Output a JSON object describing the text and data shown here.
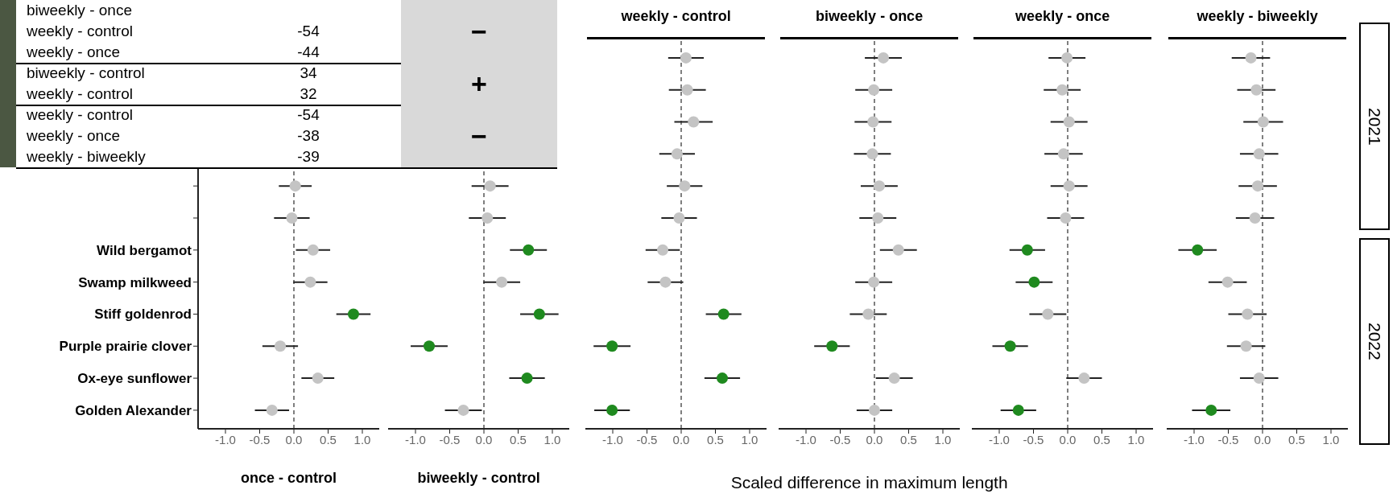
{
  "chart_data": [
    {
      "type": "other",
      "categories": [
        "biweekly - once",
        "weekly - control",
        "weekly - once",
        "biweekly - control",
        "weekly - control",
        "weekly - control",
        "weekly - once",
        "weekly - biweekly"
      ],
      "values": [
        null,
        -54,
        -44,
        34,
        32,
        -54,
        -38,
        -39
      ],
      "data_labels": true,
      "annotations": [
        "−",
        "+",
        "−"
      ]
    },
    {
      "type": "scatter",
      "orientation": "horizontal",
      "xlabel": "once - control",
      "marker": "circle",
      "categories": [
        null,
        null,
        null,
        null,
        null,
        null,
        "Wild bergamot",
        "Swamp milkweed",
        "Stiff goldenrod",
        "Purple prairie clover",
        "Ox-eye sunflower",
        "Golden Alexander"
      ],
      "values": [
        null,
        null,
        null,
        null,
        0.02,
        -0.03,
        0.28,
        0.24,
        0.87,
        -0.2,
        0.35,
        -0.32
      ],
      "errors": [
        null,
        null,
        null,
        null,
        0.24,
        0.26,
        0.25,
        0.25,
        0.25,
        0.26,
        0.24,
        0.25
      ],
      "colors": [
        null,
        null,
        null,
        null,
        "#c4c4c4",
        "#c4c4c4",
        "#c4c4c4",
        "#c4c4c4",
        "#1f8a1f",
        "#c4c4c4",
        "#c4c4c4",
        "#c4c4c4"
      ],
      "xlim": [
        -1.4,
        1.25
      ],
      "xticks": [
        {
          "value": -1,
          "label": "-1.0"
        },
        {
          "value": -0.5,
          "label": "-0.5"
        },
        {
          "value": 0,
          "label": "0.0"
        },
        {
          "value": 0.5,
          "label": "0.5"
        },
        {
          "value": 1,
          "label": "1.0"
        }
      ],
      "ref_lines": [
        {
          "axis": "x",
          "value": 0,
          "line_style": "dashed",
          "color": "#555555"
        }
      ]
    },
    {
      "type": "scatter",
      "orientation": "horizontal",
      "xlabel": "biweekly - control",
      "marker": "circle",
      "tick_labels": "x",
      "values": [
        null,
        null,
        null,
        null,
        0.09,
        0.05,
        0.65,
        0.26,
        0.81,
        -0.8,
        0.63,
        -0.3
      ],
      "errors": [
        null,
        null,
        null,
        null,
        0.27,
        0.27,
        0.27,
        0.27,
        0.28,
        0.27,
        0.26,
        0.27
      ],
      "colors": [
        null,
        null,
        null,
        null,
        "#c4c4c4",
        "#c4c4c4",
        "#1f8a1f",
        "#c4c4c4",
        "#1f8a1f",
        "#1f8a1f",
        "#1f8a1f",
        "#c4c4c4"
      ],
      "xlim": [
        -1.4,
        1.25
      ],
      "xticks": [
        {
          "value": -1,
          "label": "-1.0"
        },
        {
          "value": -0.5,
          "label": "-0.5"
        },
        {
          "value": 0,
          "label": "0.0"
        },
        {
          "value": 0.5,
          "label": "0.5"
        },
        {
          "value": 1,
          "label": "1.0"
        }
      ],
      "ref_lines": [
        {
          "axis": "x",
          "value": 0,
          "line_style": "dashed",
          "color": "#555555"
        }
      ]
    },
    {
      "type": "scatter",
      "orientation": "horizontal",
      "title": "weekly - control",
      "marker": "circle",
      "tick_labels": "x",
      "values": [
        0.07,
        0.09,
        0.18,
        -0.06,
        0.05,
        -0.03,
        -0.27,
        -0.23,
        0.62,
        -1.01,
        0.6,
        -1.01
      ],
      "errors": [
        0.26,
        0.27,
        0.28,
        0.26,
        0.26,
        0.26,
        0.25,
        0.26,
        0.26,
        0.27,
        0.26,
        0.26
      ],
      "colors": [
        "#c4c4c4",
        "#c4c4c4",
        "#c4c4c4",
        "#c4c4c4",
        "#c4c4c4",
        "#c4c4c4",
        "#c4c4c4",
        "#c4c4c4",
        "#1f8a1f",
        "#1f8a1f",
        "#1f8a1f",
        "#1f8a1f"
      ],
      "xlim": [
        -1.4,
        1.25
      ],
      "xticks": [
        {
          "value": -1,
          "label": "-1.0"
        },
        {
          "value": -0.5,
          "label": "-0.5"
        },
        {
          "value": 0,
          "label": "0.0"
        },
        {
          "value": 0.5,
          "label": "0.5"
        },
        {
          "value": 1,
          "label": "1.0"
        }
      ],
      "ref_lines": [
        {
          "axis": "x",
          "value": 0,
          "line_style": "dashed",
          "color": "#555555"
        }
      ]
    },
    {
      "type": "scatter",
      "orientation": "horizontal",
      "title": "biweekly - once",
      "xlabel": "Scaled difference in maximum length",
      "marker": "circle",
      "tick_labels": "x",
      "values": [
        0.13,
        -0.01,
        -0.02,
        -0.03,
        0.07,
        0.05,
        0.35,
        -0.01,
        -0.09,
        -0.62,
        0.29,
        0.0
      ],
      "errors": [
        0.27,
        0.27,
        0.27,
        0.27,
        0.27,
        0.27,
        0.27,
        0.27,
        0.27,
        0.26,
        0.27,
        0.26
      ],
      "colors": [
        "#c4c4c4",
        "#c4c4c4",
        "#c4c4c4",
        "#c4c4c4",
        "#c4c4c4",
        "#c4c4c4",
        "#c4c4c4",
        "#c4c4c4",
        "#c4c4c4",
        "#1f8a1f",
        "#c4c4c4",
        "#c4c4c4"
      ],
      "xlim": [
        -1.4,
        1.25
      ],
      "xticks": [
        {
          "value": -1,
          "label": "-1.0"
        },
        {
          "value": -0.5,
          "label": "-0.5"
        },
        {
          "value": 0,
          "label": "0.0"
        },
        {
          "value": 0.5,
          "label": "0.5"
        },
        {
          "value": 1,
          "label": "1.0"
        }
      ],
      "ref_lines": [
        {
          "axis": "x",
          "value": 0,
          "line_style": "dashed",
          "color": "#555555"
        }
      ]
    },
    {
      "type": "scatter",
      "orientation": "horizontal",
      "title": "weekly - once",
      "marker": "circle",
      "tick_labels": "x",
      "values": [
        -0.01,
        -0.08,
        0.02,
        -0.06,
        0.02,
        -0.03,
        -0.59,
        -0.49,
        -0.29,
        -0.84,
        0.24,
        -0.72
      ],
      "errors": [
        0.27,
        0.27,
        0.27,
        0.28,
        0.27,
        0.27,
        0.26,
        0.27,
        0.27,
        0.26,
        0.26,
        0.26
      ],
      "colors": [
        "#c4c4c4",
        "#c4c4c4",
        "#c4c4c4",
        "#c4c4c4",
        "#c4c4c4",
        "#c4c4c4",
        "#1f8a1f",
        "#1f8a1f",
        "#c4c4c4",
        "#1f8a1f",
        "#c4c4c4",
        "#1f8a1f"
      ],
      "xlim": [
        -1.4,
        1.25
      ],
      "xticks": [
        {
          "value": -1,
          "label": "-1.0"
        },
        {
          "value": -0.5,
          "label": "-0.5"
        },
        {
          "value": 0,
          "label": "0.0"
        },
        {
          "value": 0.5,
          "label": "0.5"
        },
        {
          "value": 1,
          "label": "1.0"
        }
      ],
      "ref_lines": [
        {
          "axis": "x",
          "value": 0,
          "line_style": "dashed",
          "color": "#555555"
        }
      ]
    },
    {
      "type": "scatter",
      "orientation": "horizontal",
      "title": "weekly - biweekly",
      "marker": "circle",
      "tick_labels": "x",
      "annotations": [
        "2021",
        "2022"
      ],
      "values": [
        -0.17,
        -0.09,
        0.01,
        -0.05,
        -0.07,
        -0.11,
        -0.95,
        -0.51,
        -0.22,
        -0.24,
        -0.05,
        -0.75
      ],
      "errors": [
        0.28,
        0.28,
        0.29,
        0.28,
        0.28,
        0.28,
        0.28,
        0.28,
        0.28,
        0.28,
        0.28,
        0.28
      ],
      "colors": [
        "#c4c4c4",
        "#c4c4c4",
        "#c4c4c4",
        "#c4c4c4",
        "#c4c4c4",
        "#c4c4c4",
        "#1f8a1f",
        "#c4c4c4",
        "#c4c4c4",
        "#c4c4c4",
        "#c4c4c4",
        "#1f8a1f"
      ],
      "xlim": [
        -1.4,
        1.25
      ],
      "xticks": [
        {
          "value": -1,
          "label": "-1.0"
        },
        {
          "value": -0.5,
          "label": "-0.5"
        },
        {
          "value": 0,
          "label": "0.0"
        },
        {
          "value": 0.5,
          "label": "0.5"
        },
        {
          "value": 1,
          "label": "1.0"
        }
      ],
      "ref_lines": [
        {
          "axis": "x",
          "value": 0,
          "line_style": "dashed",
          "color": "#555555"
        }
      ]
    }
  ]
}
